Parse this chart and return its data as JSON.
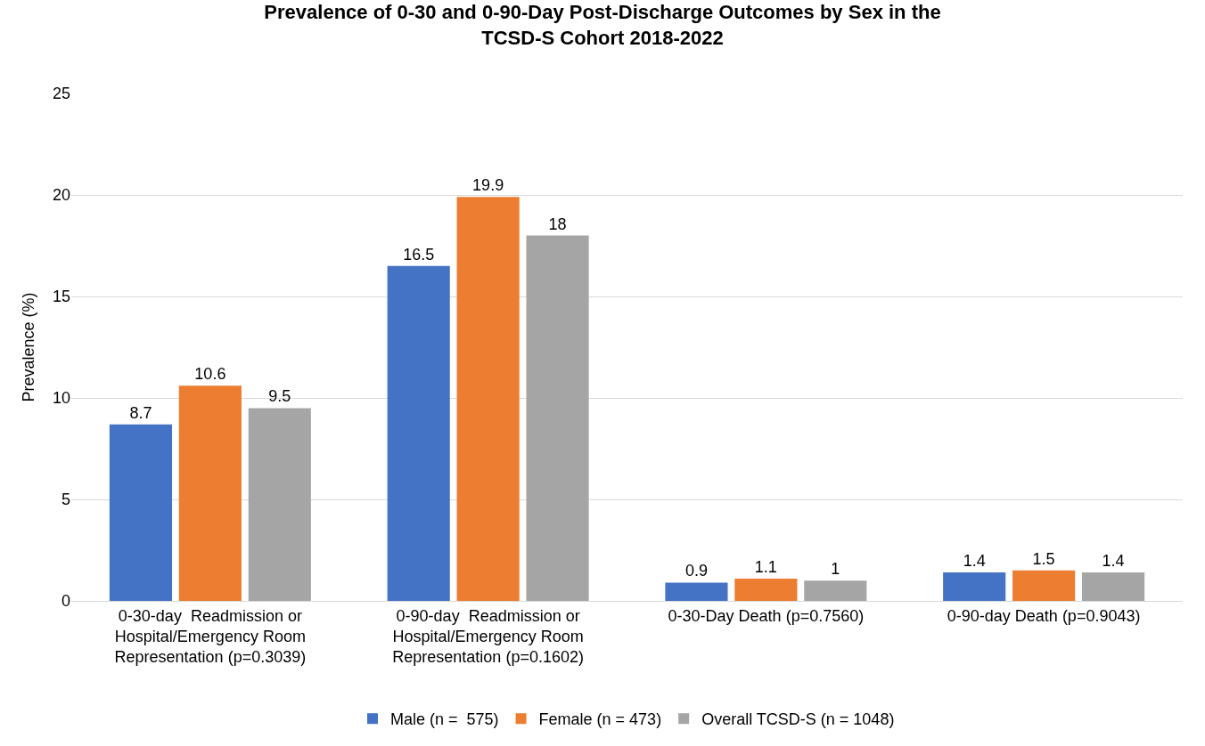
{
  "chart_data": {
    "type": "bar",
    "title": "Prevalence of 0-30 and 0-90-Day Post-Discharge Outcomes by Sex in the\nTCSD-S Cohort 2018-2022",
    "ylabel": "Prevalence (%)",
    "categories": [
      "0-30-day  Readmission or\nHospital/Emergency Room\nRepresentation (p=0.3039)",
      "0-90-day  Readmission or\nHospital/Emergency Room\nRepresentation (p=0.1602)",
      "0-30-Day Death (p=0.7560)",
      "0-90-day Death (p=0.9043)"
    ],
    "series": [
      {
        "name": "Male (n =  575)",
        "color": "#4472c4",
        "values": [
          8.7,
          16.5,
          0.9,
          1.4
        ]
      },
      {
        "name": "Female (n = 473)",
        "color": "#ed7d31",
        "values": [
          10.6,
          19.9,
          1.1,
          1.5
        ]
      },
      {
        "name": "Overall TCSD-S (n = 1048)",
        "color": "#a5a5a5",
        "values": [
          9.5,
          18,
          1,
          1.4
        ]
      }
    ],
    "ylim": [
      0,
      25
    ],
    "yticks": [
      0,
      5,
      10,
      15,
      20,
      25
    ],
    "grid": "y",
    "legend": "bottom",
    "data_labels": true
  }
}
